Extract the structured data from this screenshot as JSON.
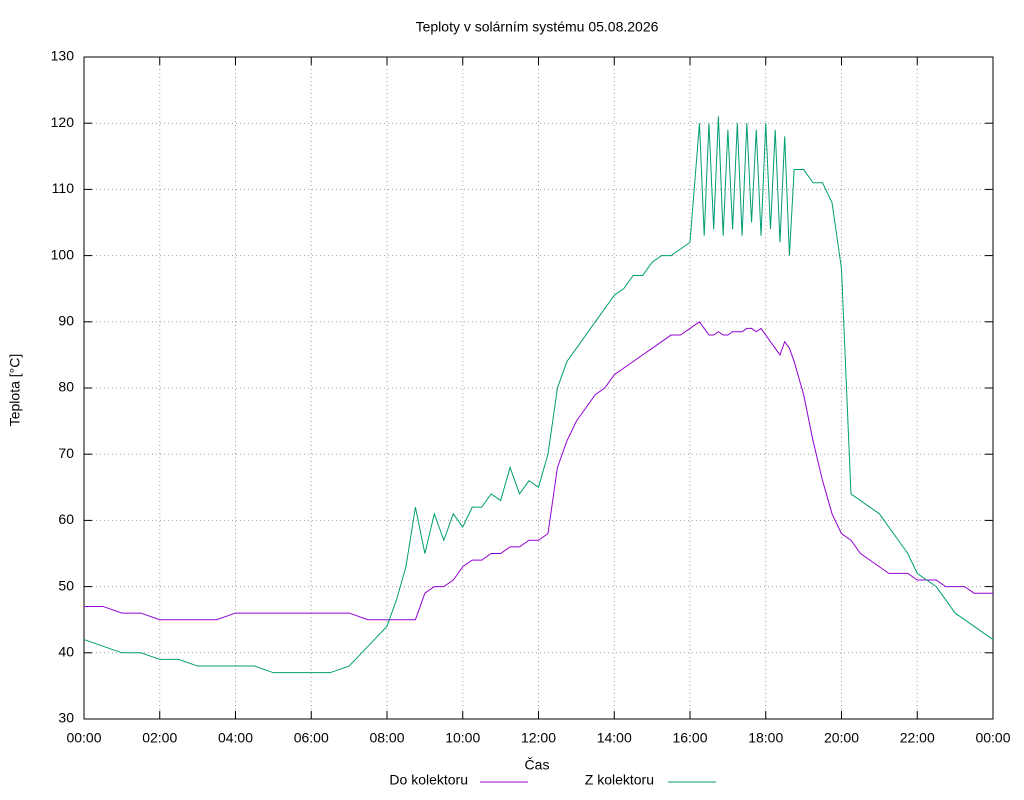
{
  "chart_data": {
    "type": "line",
    "title": "Teploty v solárním systému 05.08.2026",
    "xlabel": "Čas",
    "ylabel": "Teplota [°C]",
    "x": [
      0,
      0.5,
      1,
      1.5,
      2,
      2.5,
      3,
      3.5,
      4,
      4.5,
      5,
      5.5,
      6,
      6.5,
      7,
      7.5,
      8,
      8.25,
      8.5,
      8.75,
      9,
      9.25,
      9.5,
      9.75,
      10,
      10.25,
      10.5,
      10.75,
      11,
      11.25,
      11.5,
      11.75,
      12,
      12.25,
      12.5,
      12.75,
      13,
      13.25,
      13.5,
      13.75,
      14,
      14.25,
      14.5,
      14.75,
      15,
      15.25,
      15.5,
      15.75,
      16,
      16.25,
      16.375,
      16.5,
      16.625,
      16.75,
      16.875,
      17,
      17.125,
      17.25,
      17.375,
      17.5,
      17.625,
      17.75,
      17.875,
      18,
      18.125,
      18.25,
      18.375,
      18.5,
      18.625,
      18.75,
      19,
      19.25,
      19.5,
      19.75,
      20,
      20.25,
      20.5,
      20.75,
      21,
      21.25,
      21.5,
      21.75,
      22,
      22.25,
      22.5,
      22.75,
      23,
      23.25,
      23.5,
      23.75,
      24
    ],
    "series": [
      {
        "name": "Do kolektoru",
        "color": "#9400d3",
        "values": [
          47,
          47,
          46,
          46,
          45,
          45,
          45,
          45,
          46,
          46,
          46,
          46,
          46,
          46,
          46,
          45,
          45,
          45,
          45,
          45,
          49,
          50,
          50,
          51,
          53,
          54,
          54,
          55,
          55,
          56,
          56,
          57,
          57,
          58,
          68,
          72,
          75,
          77,
          79,
          80,
          82,
          83,
          84,
          85,
          86,
          87,
          88,
          88,
          89,
          90,
          89,
          88,
          88,
          88.5,
          88,
          88,
          88.5,
          88.5,
          88.5,
          89,
          89,
          88.5,
          89,
          88,
          87,
          86,
          85,
          87,
          86,
          84,
          79,
          72,
          66,
          61,
          58,
          57,
          55,
          54,
          53,
          52,
          52,
          52,
          51,
          51,
          51,
          50,
          50,
          50,
          49,
          49,
          49
        ]
      },
      {
        "name": "Z kolektoru",
        "color": "#009e73",
        "values": [
          42,
          41,
          40,
          40,
          39,
          39,
          38,
          38,
          38,
          38,
          37,
          37,
          37,
          37,
          38,
          41,
          44,
          48,
          53,
          62,
          55,
          61,
          57,
          61,
          59,
          62,
          62,
          64,
          63,
          68,
          64,
          66,
          65,
          70,
          80,
          84,
          86,
          88,
          90,
          92,
          94,
          95,
          97,
          97,
          99,
          100,
          100,
          101,
          102,
          120,
          103,
          120,
          104,
          121,
          103,
          119,
          104,
          120,
          103,
          120,
          105,
          119,
          103,
          120,
          104,
          119,
          102,
          118,
          100,
          113,
          113,
          111,
          111,
          108,
          98,
          64,
          63,
          62,
          61,
          59,
          57,
          55,
          52,
          51,
          50,
          48,
          46,
          45,
          44,
          43,
          42
        ]
      }
    ],
    "xlim": [
      0,
      24
    ],
    "xticks": [
      {
        "value": 0,
        "label": "00:00"
      },
      {
        "value": 2,
        "label": "02:00"
      },
      {
        "value": 4,
        "label": "04:00"
      },
      {
        "value": 6,
        "label": "06:00"
      },
      {
        "value": 8,
        "label": "08:00"
      },
      {
        "value": 10,
        "label": "10:00"
      },
      {
        "value": 12,
        "label": "12:00"
      },
      {
        "value": 14,
        "label": "14:00"
      },
      {
        "value": 16,
        "label": "16:00"
      },
      {
        "value": 18,
        "label": "18:00"
      },
      {
        "value": 20,
        "label": "20:00"
      },
      {
        "value": 22,
        "label": "22:00"
      },
      {
        "value": 24,
        "label": "00:00"
      }
    ],
    "ylim": [
      30,
      130
    ],
    "yticks": [
      30,
      40,
      50,
      60,
      70,
      80,
      90,
      100,
      110,
      120,
      130
    ],
    "grid": true,
    "legend": "bottom"
  }
}
